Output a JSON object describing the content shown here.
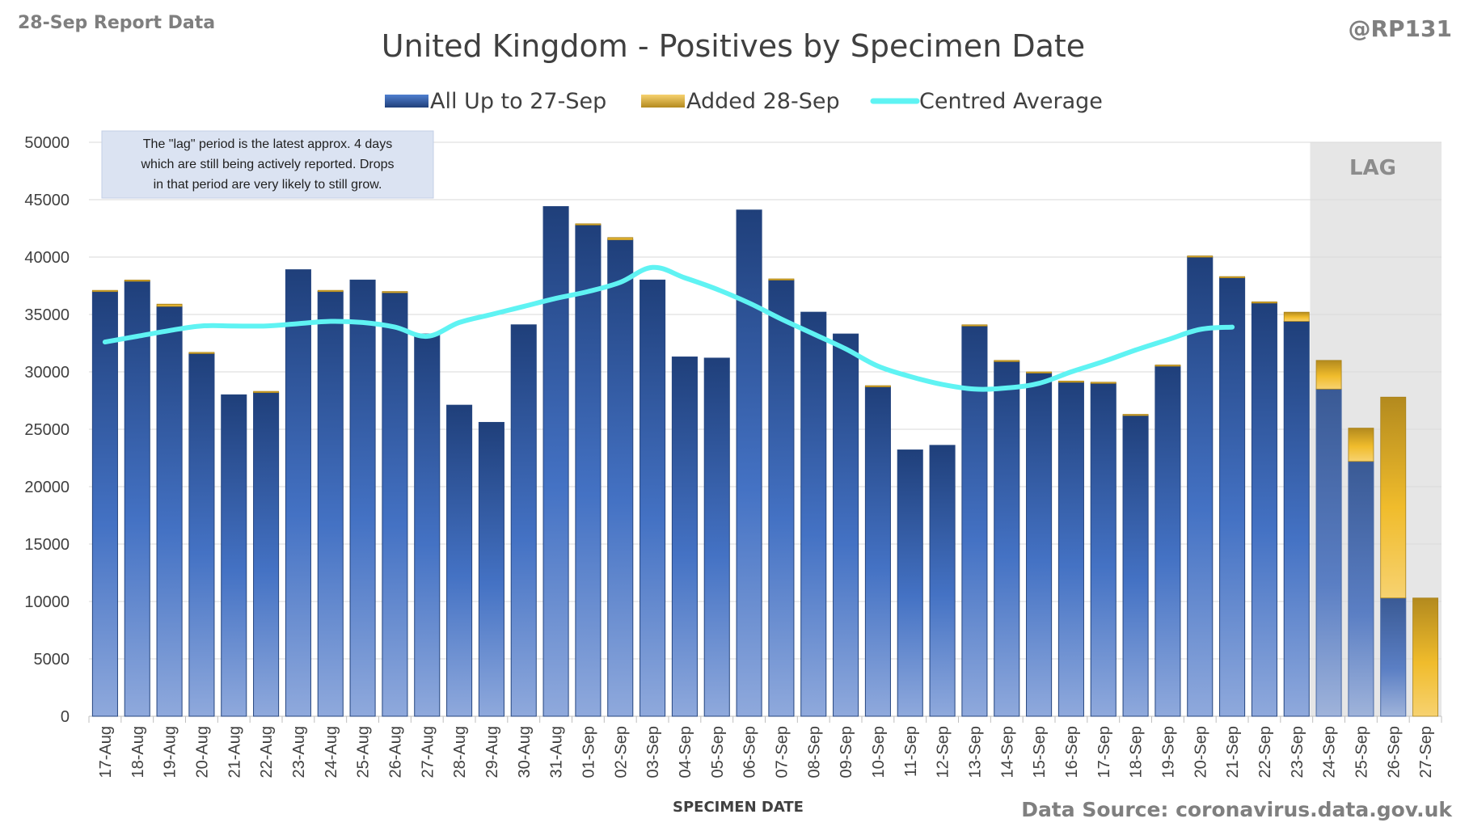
{
  "header": {
    "report_label": "28-Sep Report Data",
    "handle": "@RP131"
  },
  "footer": {
    "source": "Data Source: coronavirus.data.gov.uk"
  },
  "annotation": {
    "lines": [
      "The \"lag\" period is the latest approx. 4 days",
      "which are still being actively reported. Drops",
      "in that period are very likely to still grow."
    ]
  },
  "lag_label": "LAG",
  "colors": {
    "base_bar": "#2f5597",
    "added_bar": "#e8b423",
    "average_line": "#5ff3f3",
    "lag_band": "#e6e6e6"
  },
  "chart_data": {
    "type": "bar",
    "title": "United Kingdom - Positives by Specimen Date",
    "xlabel": "SPECIMEN DATE",
    "ylabel": "",
    "ylim": [
      0,
      50000
    ],
    "yticks": [
      0,
      5000,
      10000,
      15000,
      20000,
      25000,
      30000,
      35000,
      40000,
      45000,
      50000
    ],
    "stacked": true,
    "grid": true,
    "legend_position": "top",
    "categories": [
      "17-Aug",
      "18-Aug",
      "19-Aug",
      "20-Aug",
      "21-Aug",
      "22-Aug",
      "23-Aug",
      "24-Aug",
      "25-Aug",
      "26-Aug",
      "27-Aug",
      "28-Aug",
      "29-Aug",
      "30-Aug",
      "31-Aug",
      "01-Sep",
      "02-Sep",
      "03-Sep",
      "04-Sep",
      "05-Sep",
      "06-Sep",
      "07-Sep",
      "08-Sep",
      "09-Sep",
      "10-Sep",
      "11-Sep",
      "12-Sep",
      "13-Sep",
      "14-Sep",
      "15-Sep",
      "16-Sep",
      "17-Sep",
      "18-Sep",
      "19-Sep",
      "20-Sep",
      "21-Sep",
      "22-Sep",
      "23-Sep",
      "24-Sep",
      "25-Sep",
      "26-Sep",
      "27-Sep"
    ],
    "lag_categories": [
      "24-Sep",
      "25-Sep",
      "26-Sep",
      "27-Sep"
    ],
    "series": [
      {
        "name": "All Up to 27-Sep",
        "kind": "bar",
        "values": [
          37000,
          37900,
          35700,
          31600,
          28000,
          28200,
          38900,
          37000,
          38000,
          36900,
          33300,
          27100,
          25600,
          34100,
          44400,
          42800,
          41500,
          38000,
          31300,
          31200,
          44100,
          38000,
          35200,
          33300,
          28700,
          23200,
          23600,
          34000,
          30900,
          29900,
          29100,
          29000,
          26200,
          30500,
          40000,
          38200,
          36000,
          34400,
          28500,
          22200,
          10300,
          0
        ]
      },
      {
        "name": "Added 28-Sep",
        "kind": "bar",
        "values": [
          100,
          100,
          200,
          100,
          0,
          100,
          0,
          100,
          0,
          100,
          0,
          0,
          0,
          0,
          0,
          100,
          200,
          0,
          0,
          0,
          0,
          100,
          0,
          0,
          100,
          0,
          0,
          100,
          100,
          100,
          100,
          100,
          100,
          100,
          100,
          100,
          100,
          800,
          2500,
          2900,
          17500,
          10300
        ]
      },
      {
        "name": "Centred Average",
        "kind": "line",
        "values": [
          32600,
          33100,
          33600,
          34000,
          34000,
          34000,
          34200,
          34400,
          34300,
          33900,
          33100,
          34300,
          35000,
          35700,
          36400,
          37000,
          37800,
          39100,
          38200,
          37200,
          36000,
          34600,
          33300,
          32000,
          30500,
          29600,
          28900,
          28500,
          28600,
          29000,
          30000,
          30900,
          31900,
          32800,
          33700,
          33900,
          null,
          null,
          null,
          null,
          null,
          null
        ]
      }
    ]
  }
}
